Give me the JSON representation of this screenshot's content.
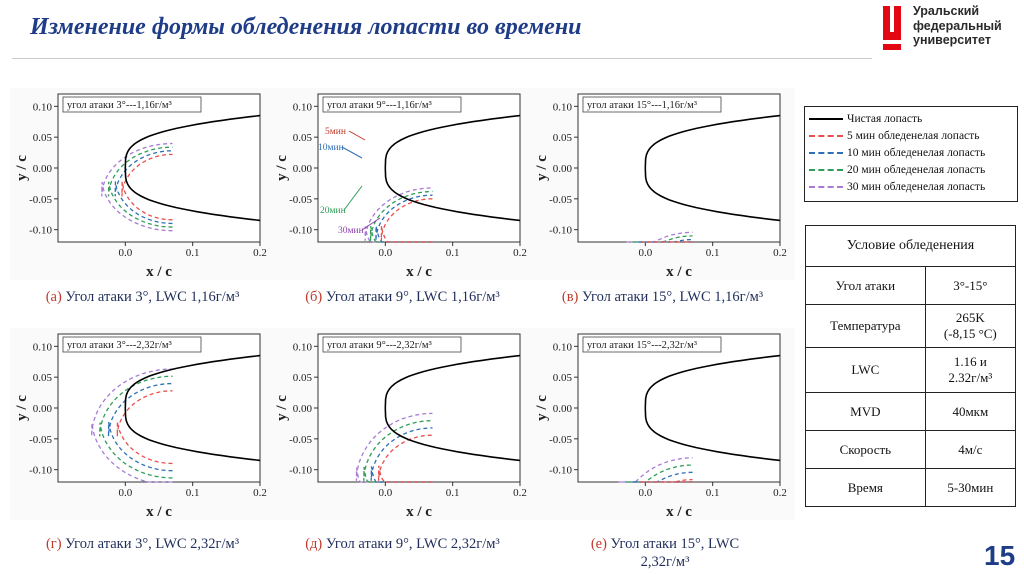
{
  "slide": {
    "title": "Изменение формы обледенения лопасти во времени",
    "page_number": "15"
  },
  "logo": {
    "line1": "Уральский",
    "line2": "федеральный",
    "line3": "университет",
    "color": "#e30613"
  },
  "legend": {
    "items": [
      {
        "label": "Чистая лопасть",
        "color": "#000000",
        "style": "solid"
      },
      {
        "label": "5 мин обледенелая лопасть",
        "color": "#e8504f",
        "style": "dashed"
      },
      {
        "label": "10 мин обледенелая лопасть",
        "color": "#2f6fb5",
        "style": "dashed"
      },
      {
        "label": "20 мин обледенелая лопасть",
        "color": "#2e9e58",
        "style": "dashed"
      },
      {
        "label": "30 мин обледенелая лопасть",
        "color": "#a77bd6",
        "style": "dashed"
      }
    ]
  },
  "conditions": {
    "header": "Условие обледенения",
    "rows": [
      {
        "name": "Угол атаки",
        "value": "3°-15°"
      },
      {
        "name": "Температура",
        "value_line1": "265K",
        "value_line2": "(-8,15 °C)"
      },
      {
        "name": "LWC",
        "value_line1": "1.16 и",
        "value_line2": "2.32г/м³"
      },
      {
        "name": "MVD",
        "value": "40мкм"
      },
      {
        "name": "Скорость",
        "value": "4м/с"
      },
      {
        "name": "Время",
        "value": "5-30мин"
      }
    ]
  },
  "captions": [
    {
      "letter": "(а)",
      "text": "Угол атаки 3°, LWC 1,16г/м³"
    },
    {
      "letter": "(б)",
      "text": "Угол атаки 9°, LWC 1,16г/м³"
    },
    {
      "letter": "(в)",
      "text": "Угол атаки 15°, LWC 1,16г/м³"
    },
    {
      "letter": "(г)",
      "text": "Угол атаки 3°, LWC 2,32г/м³"
    },
    {
      "letter": "(д)",
      "text": "Угол атаки 9°, LWC 2,32г/м³"
    },
    {
      "letter": "(е)",
      "text": "Угол атаки 15°, LWC",
      "text2": "2,32г/м³"
    }
  ],
  "chart_data": [
    {
      "type": "line",
      "id": "a",
      "panel_label": "угол атаки 3°---1,16г/м³",
      "xlabel": "x / c",
      "ylabel": "y / c",
      "xlim": [
        -0.1,
        0.2
      ],
      "ylim": [
        -0.12,
        0.12
      ],
      "x_ticks": [
        "0.0",
        "0.1",
        "0.2"
      ],
      "y_ticks": [
        "0.10",
        "0.05",
        "0.00",
        "-0.05",
        "-0.10"
      ],
      "aoa_deg": 3,
      "lwc": 1.16,
      "ice_lead_x": [
        -0.005,
        -0.015,
        -0.025,
        -0.035
      ],
      "series": [
        "Чистая лопасть",
        "5 мин обледенелая лопасть",
        "10 мин обледенелая лопасть",
        "20 мин обледенелая лопасть",
        "30 мин обледенелая лопасть"
      ]
    },
    {
      "type": "line",
      "id": "b",
      "panel_label": "угол атаки 9°---1,16г/м³",
      "xlabel": "x / c",
      "ylabel": "y / c",
      "xlim": [
        -0.1,
        0.2
      ],
      "ylim": [
        -0.12,
        0.12
      ],
      "x_ticks": [
        "0.0",
        "0.1",
        "0.2"
      ],
      "y_ticks": [
        "0.10",
        "0.05",
        "0.00",
        "-0.05",
        "-0.10"
      ],
      "aoa_deg": 9,
      "lwc": 1.16,
      "ice_lead_x": [
        -0.006,
        -0.014,
        -0.022,
        -0.03
      ],
      "annotations": [
        "5мин",
        "10мин",
        "20мин",
        "30мин"
      ],
      "series": [
        "Чистая лопасть",
        "5 мин обледенелая лопасть",
        "10 мин обледенелая лопасть",
        "20 мин обледенелая лопасть",
        "30 мин обледенелая лопасть"
      ]
    },
    {
      "type": "line",
      "id": "c",
      "panel_label": "угол атаки 15°---1,16г/м³",
      "xlabel": "x / c",
      "ylabel": "y / c",
      "xlim": [
        -0.1,
        0.2
      ],
      "ylim": [
        -0.12,
        0.12
      ],
      "x_ticks": [
        "0.0",
        "0.1",
        "0.2"
      ],
      "y_ticks": [
        "0.10",
        "0.05",
        "0.00",
        "-0.05",
        "-0.10"
      ],
      "aoa_deg": 15,
      "lwc": 1.16,
      "ice_lead_x": [
        -0.005,
        -0.012,
        -0.02,
        -0.028
      ],
      "series": [
        "Чистая лопасть",
        "5 мин обледенелая лопасть",
        "10 мин обледенелая лопасть",
        "20 мин обледенелая лопасть",
        "30 мин обледенелая лопасть"
      ]
    },
    {
      "type": "line",
      "id": "d",
      "panel_label": "угол атаки 3°---2,32г/м³",
      "xlabel": "x / c",
      "ylabel": "y / c",
      "xlim": [
        -0.1,
        0.2
      ],
      "ylim": [
        -0.12,
        0.12
      ],
      "x_ticks": [
        "0.0",
        "0.1",
        "0.2"
      ],
      "y_ticks": [
        "0.10",
        "0.05",
        "0.00",
        "-0.05",
        "-0.10"
      ],
      "aoa_deg": 3,
      "lwc": 2.32,
      "ice_lead_x": [
        -0.012,
        -0.025,
        -0.038,
        -0.05
      ],
      "series": [
        "Чистая лопасть",
        "5 мин обледенелая лопасть",
        "10 мин обледенелая лопасть",
        "20 мин обледенелая лопасть",
        "30 мин обледенелая лопасть"
      ]
    },
    {
      "type": "line",
      "id": "e",
      "panel_label": "угол атаки 9°---2,32г/м³",
      "xlabel": "x / c",
      "ylabel": "y / c",
      "xlim": [
        -0.1,
        0.2
      ],
      "ylim": [
        -0.12,
        0.12
      ],
      "x_ticks": [
        "0.0",
        "0.1",
        "0.2"
      ],
      "y_ticks": [
        "0.10",
        "0.05",
        "0.00",
        "-0.05",
        "-0.10"
      ],
      "aoa_deg": 9,
      "lwc": 2.32,
      "ice_lead_x": [
        -0.01,
        -0.021,
        -0.032,
        -0.043
      ],
      "series": [
        "Чистая лопасть",
        "5 мин обледенелая лопасть",
        "10 мин обледенелая лопасть",
        "20 мин обледенелая лопасть",
        "30 мин обледенелая лопасть"
      ]
    },
    {
      "type": "line",
      "id": "f",
      "panel_label": "угол атаки 15°---2,32г/м³",
      "xlabel": "x / c",
      "ylabel": "y / c",
      "xlim": [
        -0.1,
        0.2
      ],
      "ylim": [
        -0.12,
        0.12
      ],
      "x_ticks": [
        "0.0",
        "0.1",
        "0.2"
      ],
      "y_ticks": [
        "0.10",
        "0.05",
        "0.00",
        "-0.05",
        "-0.10"
      ],
      "aoa_deg": 15,
      "lwc": 2.32,
      "ice_lead_x": [
        -0.01,
        -0.02,
        -0.03,
        -0.04
      ],
      "series": [
        "Чистая лопасть",
        "5 мин обледенелая лопасть",
        "10 мин обледенелая лопасть",
        "20 мин обледенелая лопасть",
        "30 мин обледенелая лопасть"
      ]
    }
  ]
}
